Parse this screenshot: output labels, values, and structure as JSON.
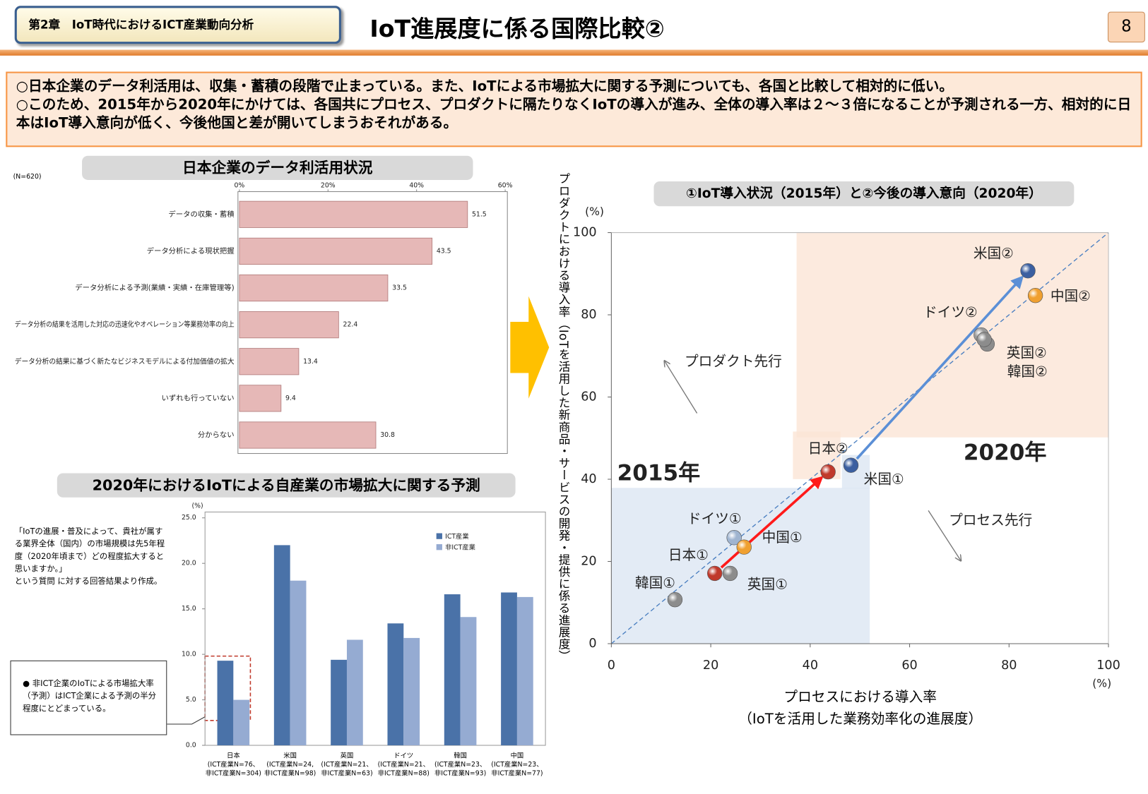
{
  "header": {
    "chapter": "第2章　IoT時代におけるICT産業動向分析",
    "title": "IoT進展度に係る国際比較②",
    "page": "8"
  },
  "summary": [
    "○日本企業のデータ利活用は、収集・蓄積の段階で止まっている。また、IoTによる市場拡大に関する予測についても、各国と比較して相対的に低い。",
    "○このため、2015年から2020年にかけては、各国共にプロセス、プロダクトに隔たりなくIoTの導入が進み、全体の導入率は２～３倍になることが予測される一方、相対的に日本はIoT導入意向が低く、今後他国と差が開いてしまうおそれがある。"
  ],
  "chart_data": [
    {
      "type": "bar",
      "orientation": "horizontal",
      "title": "日本企業のデータ利活用状況",
      "note": "(N=620)",
      "categories": [
        "データの収集・蓄積",
        "データ分析による現状把握",
        "データ分析による予測(業績・実績・在庫管理等)",
        "データ分析の結果を活用した対応の迅速化やオペレーション等業務効率の向上",
        "データ分析の結果に基づく新たなビジネスモデルによる付加価値の拡大",
        "いずれも行っていない",
        "分からない"
      ],
      "values": [
        51.5,
        43.5,
        33.5,
        22.4,
        13.4,
        9.4,
        30.8
      ],
      "color": "#e6b8b7",
      "xlim": [
        0,
        60
      ],
      "xticks": [
        {
          "value": 0,
          "label": "0%"
        },
        {
          "value": 20,
          "label": "20%"
        },
        {
          "value": 40,
          "label": "40%"
        },
        {
          "value": 60,
          "label": "60%"
        }
      ]
    },
    {
      "type": "bar",
      "orientation": "vertical",
      "title": "2020年におけるIoTによる自産業の市場拡大に関する予測",
      "unit": "(%)",
      "categories": [
        "日本\n(ICT産業N=76、\n非ICT産業N=304)",
        "米国\n(ICT産業N=24,\n非ICT産業N=98)",
        "英国\n(ICT産業N=21、\n非ICT産業N=63)",
        "ドイツ\n(ICT産業N=21、\n非ICT産業N=88)",
        "韓国\n(ICT産業N=23、\n非ICT産業N=93)",
        "中国\n(ICT産業N=23、\n非ICT産業N=77)"
      ],
      "series": [
        {
          "name": "ICT産業",
          "color": "#4a72a8",
          "values": [
            9.3,
            22.0,
            9.4,
            13.4,
            16.6,
            16.8
          ]
        },
        {
          "name": "非ICT産業",
          "color": "#95abd2",
          "values": [
            5.0,
            18.1,
            11.6,
            11.8,
            14.1,
            16.3
          ]
        }
      ],
      "ylim": [
        0,
        25
      ],
      "yticks": [
        {
          "value": 0,
          "label": "0.0"
        },
        {
          "value": 5,
          "label": "5.0"
        },
        {
          "value": 10,
          "label": "10.0"
        },
        {
          "value": 15,
          "label": "15.0"
        },
        {
          "value": 20,
          "label": "20.0"
        },
        {
          "value": 25,
          "label": "25.0"
        }
      ],
      "annotation": "「IoTの進展・普及によって、貴社が属する業界全体（国内）の市場規模は先5年程度（2020年頃まで）どの程度拡大すると思いますか。」\nという質問 に対する回答結果より作成。",
      "note": "● 非ICT企業のIoTによる市場拡大率（予測）はICT企業による予測の半分程度にとどまっている。"
    },
    {
      "type": "scatter",
      "title": "①IoT導入状況（2015年）と②今後の導入意向（2020年）",
      "xlabel": "プロセスにおける導入率\n（IoTを活用した業務効率化の進展度）",
      "ylabel": "プロダクトにおける導入率（IoTを活用した新商品・サービスの開発・提供に係る進展度）",
      "xunit": "(%)",
      "yunit": "(%)",
      "xlim": [
        0,
        100
      ],
      "ylim": [
        0,
        100
      ],
      "xticks": [
        0,
        20,
        40,
        60,
        80,
        100
      ],
      "yticks": [
        0,
        20,
        40,
        60,
        80,
        100
      ],
      "series": [
        {
          "name": "韓国①",
          "color": "#8c8c8c",
          "x": [
            12.8
          ],
          "values": [
            10.7
          ]
        },
        {
          "name": "日本①",
          "color": "#c0392b",
          "x": [
            20.8
          ],
          "values": [
            17.1
          ]
        },
        {
          "name": "英国①",
          "color": "#8c8c8c",
          "x": [
            23.9
          ],
          "values": [
            17.1
          ]
        },
        {
          "name": "ドイツ①",
          "color": "#9fb4d0",
          "x": [
            24.7
          ],
          "values": [
            25.8
          ]
        },
        {
          "name": "中国①",
          "color": "#f0a030",
          "x": [
            26.7
          ],
          "values": [
            23.5
          ]
        },
        {
          "name": "日本②",
          "color": "#c0392b",
          "x": [
            43.6
          ],
          "values": [
            41.8
          ]
        },
        {
          "name": "米国①",
          "color": "#3b5fa0",
          "x": [
            48.2
          ],
          "values": [
            43.4
          ]
        },
        {
          "name": "米国②",
          "color": "#3b5fa0",
          "x": [
            83.8
          ],
          "values": [
            90.7
          ]
        },
        {
          "name": "中国②",
          "color": "#f0a030",
          "x": [
            85.3
          ],
          "values": [
            84.7
          ]
        },
        {
          "name": "ドイツ②",
          "color": "#9a9a9a",
          "x": [
            74.4
          ],
          "values": [
            75.1
          ]
        },
        {
          "name": "英国②",
          "color": "#8c8c8c",
          "x": [
            75.6
          ],
          "values": [
            72.9
          ]
        },
        {
          "name": "韓国②",
          "color": "#8c8c8c",
          "x": [
            75.0
          ],
          "values": [
            74.0
          ]
        }
      ],
      "annotations": [
        "2015年",
        "2020年",
        "プロダクト先行",
        "プロセス先行"
      ]
    }
  ]
}
